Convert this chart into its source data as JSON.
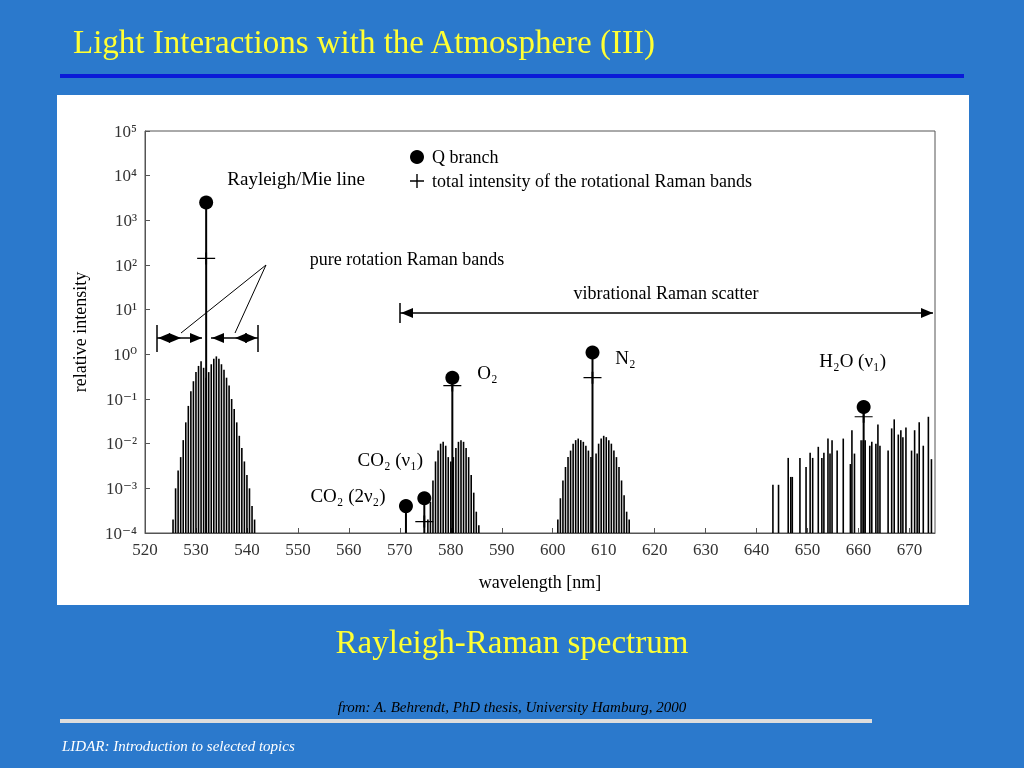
{
  "chart_data": {
    "type": "bar",
    "title": "Light Interactions with the Atmosphere (III)",
    "subtitle": "Rayleigh-Raman spectrum",
    "xlabel": "wavelength [nm]",
    "ylabel": "relative intensity",
    "xlim": [
      520,
      675
    ],
    "xticks": [
      520,
      530,
      540,
      550,
      560,
      570,
      580,
      590,
      600,
      610,
      620,
      630,
      640,
      650,
      660,
      670
    ],
    "ylim": [
      0.0001,
      100000
    ],
    "log": "y",
    "yticks": [
      {
        "value": 0.0001,
        "label": "10⁻⁴"
      },
      {
        "value": 0.001,
        "label": "10⁻³"
      },
      {
        "value": 0.01,
        "label": "10⁻²"
      },
      {
        "value": 0.1,
        "label": "10⁻¹"
      },
      {
        "value": 1,
        "label": "10⁰"
      },
      {
        "value": 10,
        "label": "10¹"
      },
      {
        "value": 100,
        "label": "10²"
      },
      {
        "value": 1000,
        "label": "10³"
      },
      {
        "value": 10000,
        "label": "10⁴"
      },
      {
        "value": 100000,
        "label": "10⁵"
      }
    ],
    "grid": false,
    "legend": "top",
    "series": [
      {
        "name": "Q branch",
        "type": "lollipop",
        "color": "#000000",
        "marker": "circle",
        "x": [
          532,
          571.2,
          574.8,
          580.3,
          607.8,
          661
        ],
        "values": [
          2500,
          0.0004,
          0.0006,
          0.3,
          1.1,
          0.066
        ]
      },
      {
        "name": "total intensity of the rotational Raman bands",
        "type": "scatter",
        "color": "#000000",
        "marker": "cross",
        "x": [
          532,
          574.8,
          580.3,
          607.8,
          661
        ],
        "values": [
          140,
          0.00018,
          0.2,
          0.3,
          0.04
        ]
      },
      {
        "color": "#000000",
        "x": [
          525.5,
          526,
          526.5,
          527,
          527.5,
          528,
          528.5,
          529,
          529.5,
          530,
          530.5,
          531,
          531.5,
          532,
          532.5,
          533,
          533.5,
          534,
          534.5,
          535,
          535.5,
          536,
          536.5,
          537,
          537.5,
          538,
          538.5,
          539,
          539.5,
          540,
          540.5,
          541,
          541.5,
          575.5,
          576,
          576.5,
          577,
          577.5,
          578,
          578.5,
          579,
          579.5,
          580,
          580.5,
          581,
          581.5,
          582,
          582.5,
          583,
          583.5,
          584,
          584.5,
          585,
          585.5,
          601,
          601.5,
          602,
          602.5,
          603,
          603.5,
          604,
          604.5,
          605,
          605.5,
          606,
          606.5,
          607,
          607.5,
          608.5,
          609,
          609.5,
          610,
          610.5,
          611,
          611.5,
          612,
          612.5,
          613,
          613.5,
          614,
          614.5,
          615,
          643.2,
          644.3,
          646.2,
          646.7,
          647,
          648.5,
          649.7,
          650.5,
          651,
          652.1,
          652.8,
          653.2,
          654,
          654.4,
          654.8,
          655.8,
          657,
          658.4,
          658.7,
          659.2,
          660.5,
          660.9,
          661.3,
          662.2,
          662.6,
          663.4,
          663.8,
          664.2,
          665.8,
          666.5,
          667,
          667.8,
          668.3,
          668.7,
          669.3,
          670.4,
          671,
          671.5,
          671.9,
          672.7,
          673.7,
          674.3
        ],
        "values": [
          0.0002,
          0.001,
          0.0025,
          0.005,
          0.012,
          0.03,
          0.07,
          0.15,
          0.25,
          0.4,
          0.55,
          0.7,
          0.5,
          0.3,
          0.4,
          0.6,
          0.8,
          0.9,
          0.8,
          0.6,
          0.45,
          0.3,
          0.2,
          0.1,
          0.06,
          0.03,
          0.015,
          0.008,
          0.004,
          0.002,
          0.001,
          0.0004,
          0.0002,
          0.0002,
          0.0005,
          0.0015,
          0.004,
          0.007,
          0.01,
          0.011,
          0.009,
          0.005,
          0.004,
          0.005,
          0.008,
          0.011,
          0.012,
          0.011,
          0.008,
          0.005,
          0.002,
          0.0008,
          0.0003,
          0.00015,
          0.0002,
          0.0006,
          0.0015,
          0.003,
          0.005,
          0.007,
          0.01,
          0.012,
          0.013,
          0.012,
          0.011,
          0.009,
          0.007,
          0.005,
          0.006,
          0.01,
          0.013,
          0.015,
          0.014,
          0.012,
          0.01,
          0.007,
          0.005,
          0.003,
          0.0015,
          0.0007,
          0.0003,
          0.0002,
          0.0012,
          0.0012,
          0.0048,
          0.0018,
          0.0018,
          0.0048,
          0.003,
          0.0063,
          0.0048,
          0.0085,
          0.0048,
          0.0063,
          0.013,
          0.006,
          0.012,
          0.007,
          0.013,
          0.0035,
          0.02,
          0.006,
          0.012,
          0.012,
          0.012,
          0.009,
          0.011,
          0.01,
          0.027,
          0.009,
          0.007,
          0.022,
          0.035,
          0.016,
          0.02,
          0.014,
          0.023,
          0.007,
          0.02,
          0.006,
          0.03,
          0.009,
          0.04,
          0.0045
        ]
      }
    ],
    "annotations": [
      {
        "text": "Rayleigh/Mie line",
        "x": 532,
        "y": 2500
      },
      "pure rotation Raman bands",
      "vibrational Raman scatter",
      {
        "text": "O₂",
        "x": 580.3,
        "y": 0.3
      },
      {
        "text": "N₂",
        "x": 607.8,
        "y": 1.1
      },
      {
        "text": "H₂O (ν₁)",
        "x": 661,
        "y": 0.066
      },
      {
        "text": "CO₂ (ν₁)",
        "x": 574.8,
        "y": 0.0006
      },
      {
        "text": "CO₂ (2ν₂)",
        "x": 571.2,
        "y": 0.0004
      },
      "from: A. Behrendt, PhD thesis, University Hamburg, 2000",
      "LIDAR: Introduction to selected topics"
    ]
  }
}
